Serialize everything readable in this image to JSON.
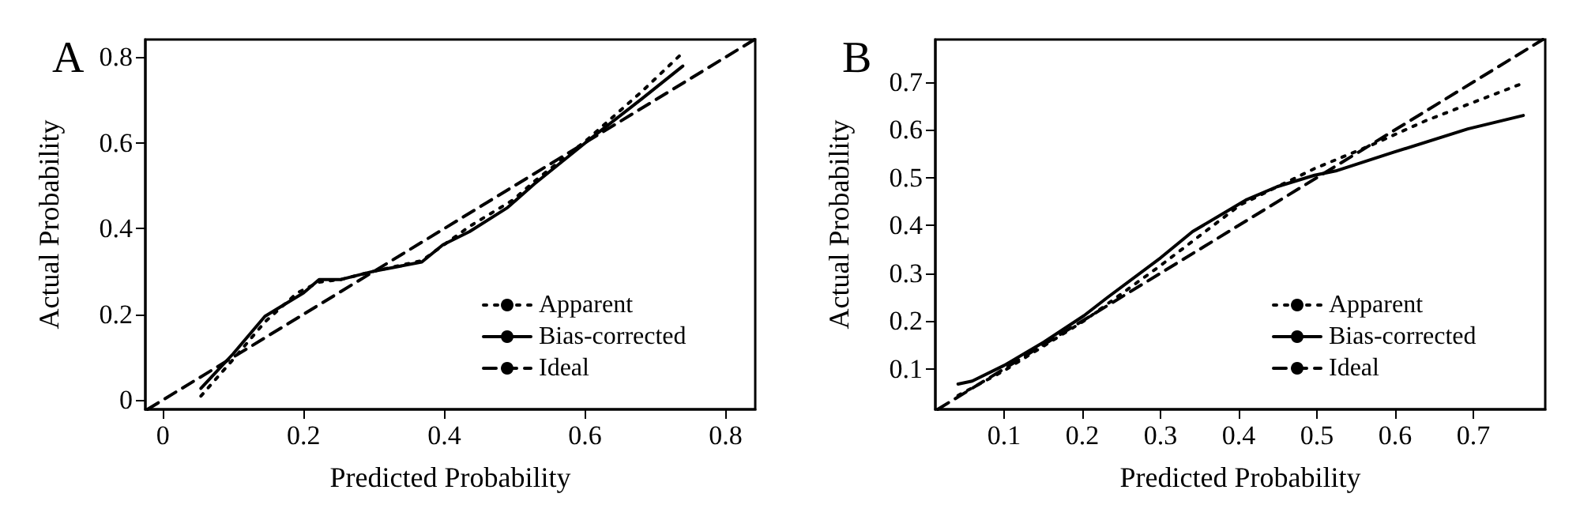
{
  "chart_data": [
    {
      "type": "line",
      "title": "A",
      "xlabel": "Predicted Probability",
      "ylabel": "Actual Probability",
      "xlim": [
        -0.025,
        0.842
      ],
      "ylim": [
        -0.022,
        0.841
      ],
      "xticks": [
        0,
        0.2,
        0.4,
        0.6,
        0.8
      ],
      "yticks": [
        0,
        0.2,
        0.4,
        0.6,
        0.8
      ],
      "grid": false,
      "legend": "bottom right",
      "marker": "none",
      "series": [
        {
          "name": "Apparent",
          "color": "#000000",
          "line_style": "dotted",
          "x": [
            0.054,
            0.1,
            0.145,
            0.191,
            0.222,
            0.253,
            0.299,
            0.368,
            0.436,
            0.498,
            0.528,
            0.605,
            0.681,
            0.735
          ],
          "values": [
            0.009,
            0.095,
            0.182,
            0.25,
            0.275,
            0.281,
            0.3,
            0.325,
            0.405,
            0.467,
            0.51,
            0.61,
            0.72,
            0.804
          ]
        },
        {
          "name": "Bias-corrected",
          "color": "#000000",
          "line_style": "solid",
          "x": [
            0.054,
            0.1,
            0.145,
            0.2,
            0.222,
            0.253,
            0.299,
            0.368,
            0.398,
            0.436,
            0.49,
            0.528,
            0.605,
            0.681,
            0.739
          ],
          "values": [
            0.027,
            0.108,
            0.195,
            0.25,
            0.281,
            0.281,
            0.3,
            0.322,
            0.362,
            0.393,
            0.449,
            0.504,
            0.606,
            0.703,
            0.779
          ]
        },
        {
          "name": "Ideal",
          "color": "#000000",
          "line_style": "dashed",
          "x": [
            -0.022,
            0.841
          ],
          "values": [
            -0.022,
            0.841
          ]
        }
      ]
    },
    {
      "type": "line",
      "title": "B",
      "xlabel": "Predicted Probability",
      "ylabel": "Actual Probability",
      "xlim": [
        0.012,
        0.792
      ],
      "ylim": [
        0.015,
        0.789
      ],
      "xticks": [
        0.1,
        0.2,
        0.3,
        0.4,
        0.5,
        0.6,
        0.7
      ],
      "yticks": [
        0.1,
        0.2,
        0.3,
        0.4,
        0.5,
        0.6,
        0.7
      ],
      "grid": false,
      "legend": "bottom right",
      "marker": "none",
      "series": [
        {
          "name": "Apparent",
          "color": "#000000",
          "line_style": "dotted",
          "x": [
            0.041,
            0.1,
            0.202,
            0.3,
            0.402,
            0.497,
            0.571,
            0.639,
            0.761
          ],
          "values": [
            0.044,
            0.096,
            0.2,
            0.316,
            0.443,
            0.519,
            0.569,
            0.619,
            0.696
          ]
        },
        {
          "name": "Bias-corrected",
          "color": "#000000",
          "line_style": "solid",
          "x": [
            0.041,
            0.059,
            0.1,
            0.151,
            0.202,
            0.232,
            0.3,
            0.341,
            0.409,
            0.449,
            0.497,
            0.524,
            0.598,
            0.693,
            0.764
          ],
          "values": [
            0.068,
            0.074,
            0.107,
            0.156,
            0.211,
            0.249,
            0.332,
            0.387,
            0.453,
            0.481,
            0.505,
            0.514,
            0.553,
            0.602,
            0.63
          ]
        },
        {
          "name": "Ideal",
          "color": "#000000",
          "line_style": "dashed",
          "x": [
            0.015,
            0.789
          ],
          "values": [
            0.015,
            0.789
          ]
        }
      ]
    }
  ]
}
